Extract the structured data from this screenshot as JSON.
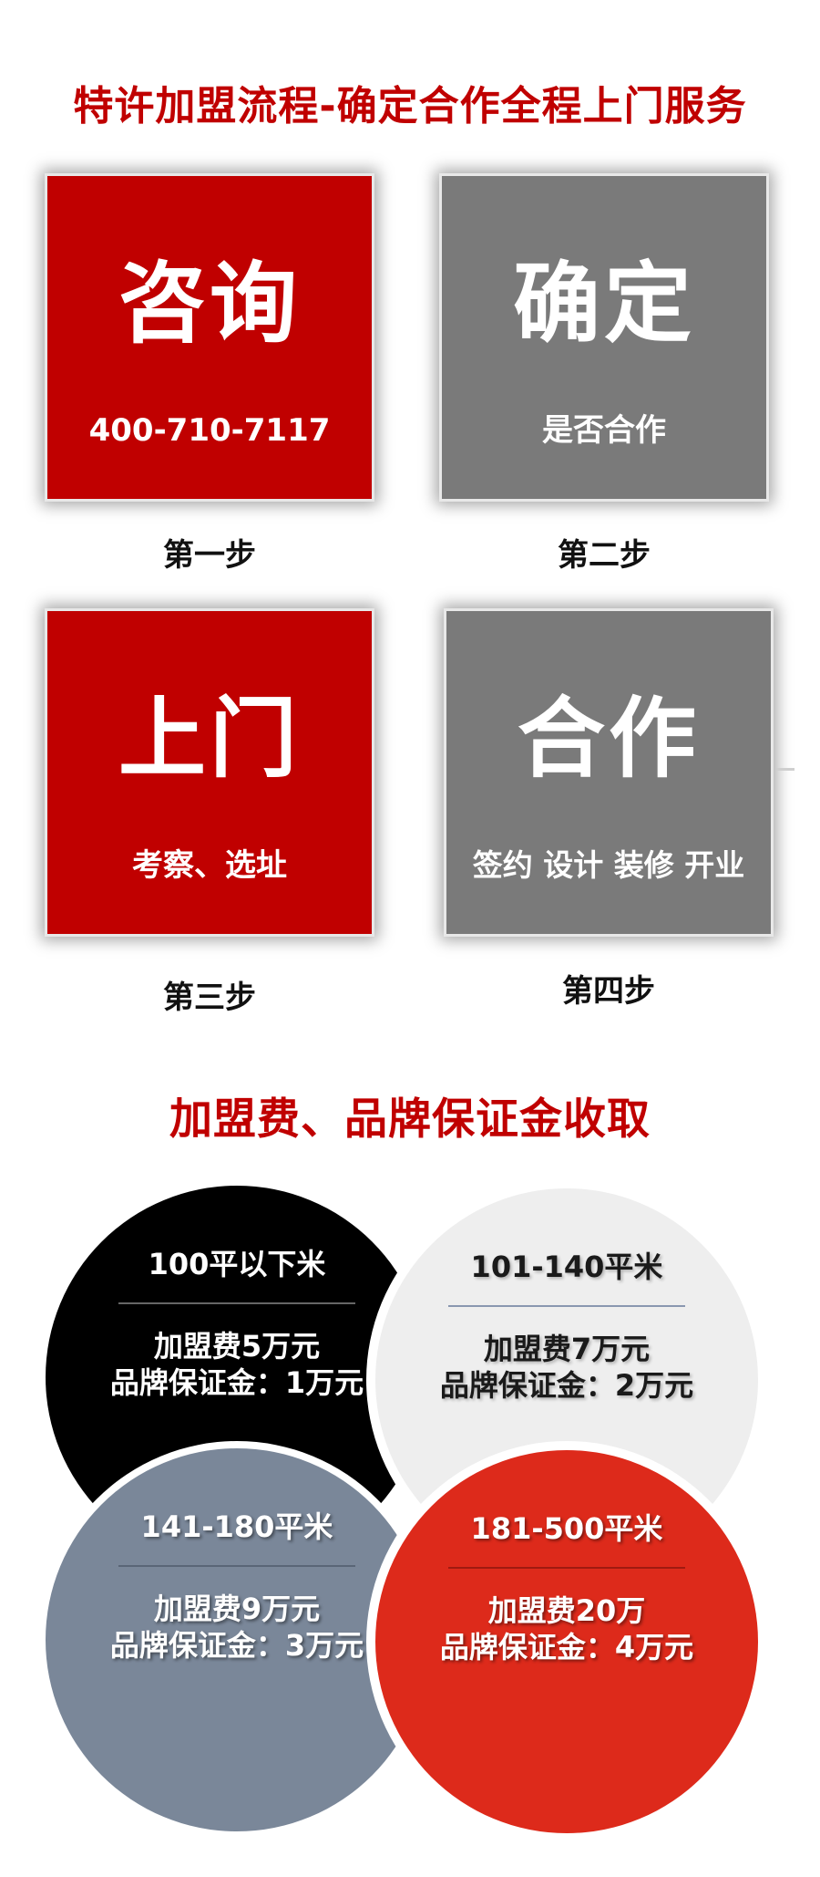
{
  "process": {
    "title": "特许加盟流程-确定合作全程上门服务",
    "steps": [
      {
        "main": "咨询",
        "sub": "400-710-7117",
        "label": "第一步",
        "color": "#c00000"
      },
      {
        "main": "确定",
        "sub": "是否合作",
        "label": "第二步",
        "color": "#7a7a7a"
      },
      {
        "main": "上门",
        "sub": "考察、选址",
        "label": "第三步",
        "color": "#c00000"
      },
      {
        "main": "合作",
        "sub": "签约 设计 装修 开业",
        "label": "第四步",
        "color": "#7a7a7a"
      }
    ]
  },
  "fees": {
    "title": "加盟费、品牌保证金收取",
    "tiers": [
      {
        "area": "100平以下米",
        "fee": "加盟费5万元",
        "deposit": "品牌保证金：1万元",
        "color": "#000000"
      },
      {
        "area": "101-140平米",
        "fee": "加盟费7万元",
        "deposit": "品牌保证金：2万元",
        "color": "#eeeeee"
      },
      {
        "area": "141-180平米",
        "fee": "加盟费9万元",
        "deposit": "品牌保证金：3万元",
        "color": "#7a8799"
      },
      {
        "area": "181-500平米",
        "fee": "加盟费20万",
        "deposit": "品牌保证金：4万元",
        "color": "#dd2a1b"
      }
    ]
  }
}
